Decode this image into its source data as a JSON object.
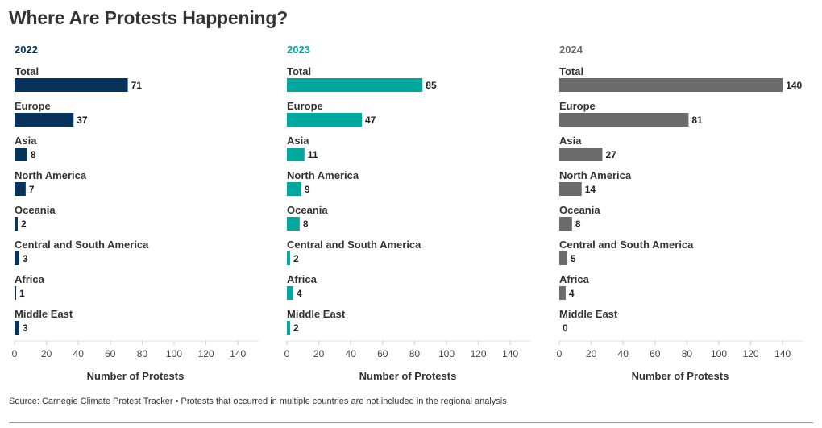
{
  "title": "Where Are Protests Happening?",
  "source": {
    "prefix": "Source: ",
    "link_text": "Carnegie Climate Protest Tracker",
    "note": " • Protests that occurred in multiple countries are not included in the regional analysis"
  },
  "chart_data": [
    {
      "type": "bar",
      "orientation": "horizontal",
      "title": "2022",
      "color": "#06325c",
      "categories": [
        "Total",
        "Europe",
        "Asia",
        "North America",
        "Oceania",
        "Central and South America",
        "Africa",
        "Middle East"
      ],
      "values": [
        71,
        37,
        8,
        7,
        2,
        3,
        1,
        3
      ],
      "xlabel": "Number of Protests",
      "xlim": [
        0,
        150
      ],
      "xticks": [
        0,
        20,
        40,
        60,
        80,
        100,
        120,
        140
      ]
    },
    {
      "type": "bar",
      "orientation": "horizontal",
      "title": "2023",
      "color": "#00a79d",
      "categories": [
        "Total",
        "Europe",
        "Asia",
        "North America",
        "Oceania",
        "Central and South America",
        "Africa",
        "Middle East"
      ],
      "values": [
        85,
        47,
        11,
        9,
        8,
        2,
        4,
        2
      ],
      "xlabel": "Number of Protests",
      "xlim": [
        0,
        150
      ],
      "xticks": [
        0,
        20,
        40,
        60,
        80,
        100,
        120,
        140
      ]
    },
    {
      "type": "bar",
      "orientation": "horizontal",
      "title": "2024",
      "color": "#6b6b6b",
      "categories": [
        "Total",
        "Europe",
        "Asia",
        "North America",
        "Oceania",
        "Central and South America",
        "Africa",
        "Middle East"
      ],
      "values": [
        140,
        81,
        27,
        14,
        8,
        5,
        4,
        0
      ],
      "xlabel": "Number of Protests",
      "xlim": [
        0,
        150
      ],
      "xticks": [
        0,
        20,
        40,
        60,
        80,
        100,
        120,
        140
      ]
    }
  ]
}
